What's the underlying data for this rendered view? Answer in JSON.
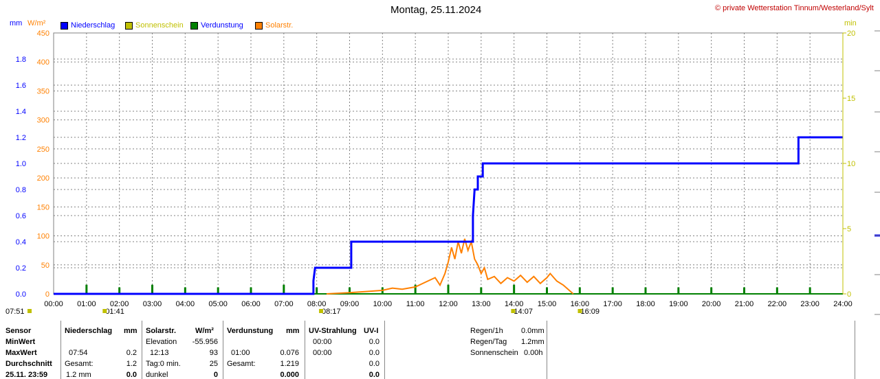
{
  "header": {
    "title": "Montag, 25.11.2024",
    "copyright": "© private Wetterstation Tinnum/Westerland/Sylt"
  },
  "units": {
    "mm": "mm",
    "wm2": "W/m²",
    "min": "min"
  },
  "legend": [
    {
      "label": "Niederschlag",
      "color": "#0000ff",
      "text_color": "#0000ff"
    },
    {
      "label": "Sonnenschein",
      "color": "#c0c000",
      "text_color": "#c0c000"
    },
    {
      "label": "Verdunstung",
      "color": "#008000",
      "text_color": "#0000ff"
    },
    {
      "label": "Solarstr.",
      "color": "#ff8000",
      "text_color": "#ff8000"
    }
  ],
  "colors": {
    "precip": "#0000ff",
    "solar": "#ff8000",
    "evap": "#008000",
    "sun": "#c0c000",
    "grid": "#808080"
  },
  "chart_data": {
    "type": "line",
    "x_ticks": [
      "00:00",
      "01:00",
      "02:00",
      "03:00",
      "04:00",
      "05:00",
      "06:00",
      "07:00",
      "08:00",
      "09:00",
      "10:00",
      "11:00",
      "12:00",
      "13:00",
      "14:00",
      "15:00",
      "16:00",
      "17:00",
      "18:00",
      "19:00",
      "20:00",
      "21:00",
      "22:00",
      "23:00",
      "24:00"
    ],
    "xlim": [
      0,
      24
    ],
    "y_left_mm": {
      "ylim": [
        0,
        2.0
      ],
      "ticks": [
        "0.0",
        "0.2",
        "0.4",
        "0.6",
        "0.8",
        "1.0",
        "1.2",
        "1.4",
        "1.6",
        "1.8"
      ],
      "tick_values": [
        0,
        0.2,
        0.4,
        0.6,
        0.8,
        1.0,
        1.2,
        1.4,
        1.6,
        1.8
      ]
    },
    "y_left_wm2": {
      "ylim": [
        0,
        450
      ],
      "ticks": [
        "0",
        "50",
        "100",
        "150",
        "200",
        "250",
        "300",
        "350",
        "400",
        "450"
      ],
      "tick_values": [
        0,
        50,
        100,
        150,
        200,
        250,
        300,
        350,
        400,
        450
      ]
    },
    "y_right_min": {
      "ylim": [
        0,
        20
      ],
      "ticks": [
        "0",
        "5",
        "10",
        "15",
        "20"
      ],
      "tick_values": [
        0,
        5,
        10,
        15,
        20
      ]
    },
    "grid": true,
    "series": [
      {
        "name": "Niederschlag",
        "axis": "mm",
        "step": true,
        "points": [
          [
            0,
            0
          ],
          [
            7.9,
            0
          ],
          [
            7.9,
            0.1
          ],
          [
            7.95,
            0.2
          ],
          [
            9.05,
            0.2
          ],
          [
            9.05,
            0.4
          ],
          [
            12.75,
            0.4
          ],
          [
            12.75,
            0.6
          ],
          [
            12.8,
            0.8
          ],
          [
            12.9,
            0.8
          ],
          [
            12.9,
            0.9
          ],
          [
            13.05,
            0.9
          ],
          [
            13.05,
            1.0
          ],
          [
            22.65,
            1.0
          ],
          [
            22.65,
            1.2
          ],
          [
            24,
            1.2
          ]
        ]
      },
      {
        "name": "Solarstr.",
        "axis": "wm2",
        "points": [
          [
            8.3,
            0
          ],
          [
            9.0,
            2
          ],
          [
            9.5,
            4
          ],
          [
            10.0,
            6
          ],
          [
            10.3,
            10
          ],
          [
            10.6,
            8
          ],
          [
            11.0,
            12
          ],
          [
            11.3,
            20
          ],
          [
            11.6,
            28
          ],
          [
            11.75,
            15
          ],
          [
            11.9,
            35
          ],
          [
            12.0,
            55
          ],
          [
            12.1,
            80
          ],
          [
            12.2,
            60
          ],
          [
            12.3,
            90
          ],
          [
            12.4,
            70
          ],
          [
            12.5,
            95
          ],
          [
            12.6,
            75
          ],
          [
            12.7,
            90
          ],
          [
            12.8,
            60
          ],
          [
            12.9,
            50
          ],
          [
            13.0,
            35
          ],
          [
            13.1,
            45
          ],
          [
            13.2,
            25
          ],
          [
            13.4,
            30
          ],
          [
            13.6,
            18
          ],
          [
            13.8,
            28
          ],
          [
            14.0,
            22
          ],
          [
            14.2,
            32
          ],
          [
            14.4,
            20
          ],
          [
            14.6,
            30
          ],
          [
            14.8,
            18
          ],
          [
            15.0,
            28
          ],
          [
            15.1,
            35
          ],
          [
            15.3,
            22
          ],
          [
            15.5,
            15
          ],
          [
            15.7,
            5
          ],
          [
            15.8,
            0
          ]
        ]
      },
      {
        "name": "Verdunstung",
        "axis": "min",
        "bars_at": [
          1,
          2,
          3,
          4,
          5,
          6,
          7,
          8,
          9,
          10,
          11,
          12,
          13,
          14,
          15,
          16,
          17,
          18,
          19,
          20,
          21,
          22,
          23
        ],
        "bar_heights_min": [
          0.7,
          0.5,
          0.7,
          0.5,
          0.5,
          0.5,
          0.7,
          0.5,
          0.5,
          0.5,
          0.7,
          0.7,
          0.5,
          0.7,
          0.5,
          0.5,
          0.5,
          0.5,
          0.5,
          0.5,
          0.5,
          0.5,
          0.5
        ]
      },
      {
        "name": "Sonnenschein",
        "axis": "min",
        "points": []
      }
    ],
    "annotations": [
      {
        "text": "07:51",
        "x": -0.3,
        "row": 1
      },
      {
        "text": "01:41",
        "x": 1.7,
        "row": 1
      },
      {
        "text": "08:17",
        "x": 8.28,
        "row": 1
      },
      {
        "text": "14:07",
        "x": 14.12,
        "row": 1
      },
      {
        "text": "16:09",
        "x": 16.15,
        "row": 1
      }
    ]
  },
  "stats": {
    "col1": {
      "header": "Sensor",
      "rows": [
        "MinWert",
        "MaxWert",
        "Durchschnitt",
        "25.11.  23:59"
      ]
    },
    "precip": {
      "header": "Niederschlag",
      "unit": "mm",
      "rows": [
        [
          "",
          ""
        ],
        [
          "07:54",
          "0.2"
        ],
        [
          "Gesamt:",
          "1.2"
        ],
        [
          "1.2 mm",
          "0.0"
        ]
      ]
    },
    "solar": {
      "header": "Solarstr.",
      "unit": "W/m²",
      "rows": [
        [
          "Elevation",
          "-55.956"
        ],
        [
          "12:13",
          "93"
        ],
        [
          "Tag:0 min.",
          "25"
        ],
        [
          "dunkel",
          "0"
        ]
      ]
    },
    "evap": {
      "header": "Verdunstung",
      "unit": "mm",
      "rows": [
        [
          "",
          ""
        ],
        [
          "01:00",
          "0.076"
        ],
        [
          "Gesamt:",
          "1.219"
        ],
        [
          "",
          "0.000"
        ]
      ]
    },
    "uv": {
      "header": "UV-Strahlung",
      "unit": "UV-I",
      "rows": [
        [
          "00:00",
          "0.0"
        ],
        [
          "00:00",
          "0.0"
        ],
        [
          "",
          "0.0"
        ],
        [
          "",
          "0.0"
        ]
      ]
    },
    "extra": [
      {
        "label": "Regen/1h",
        "value": "0.0mm"
      },
      {
        "label": "Regen/Tag",
        "value": "1.2mm"
      },
      {
        "label": "Sonnenschein",
        "value": "0.00h"
      }
    ]
  }
}
